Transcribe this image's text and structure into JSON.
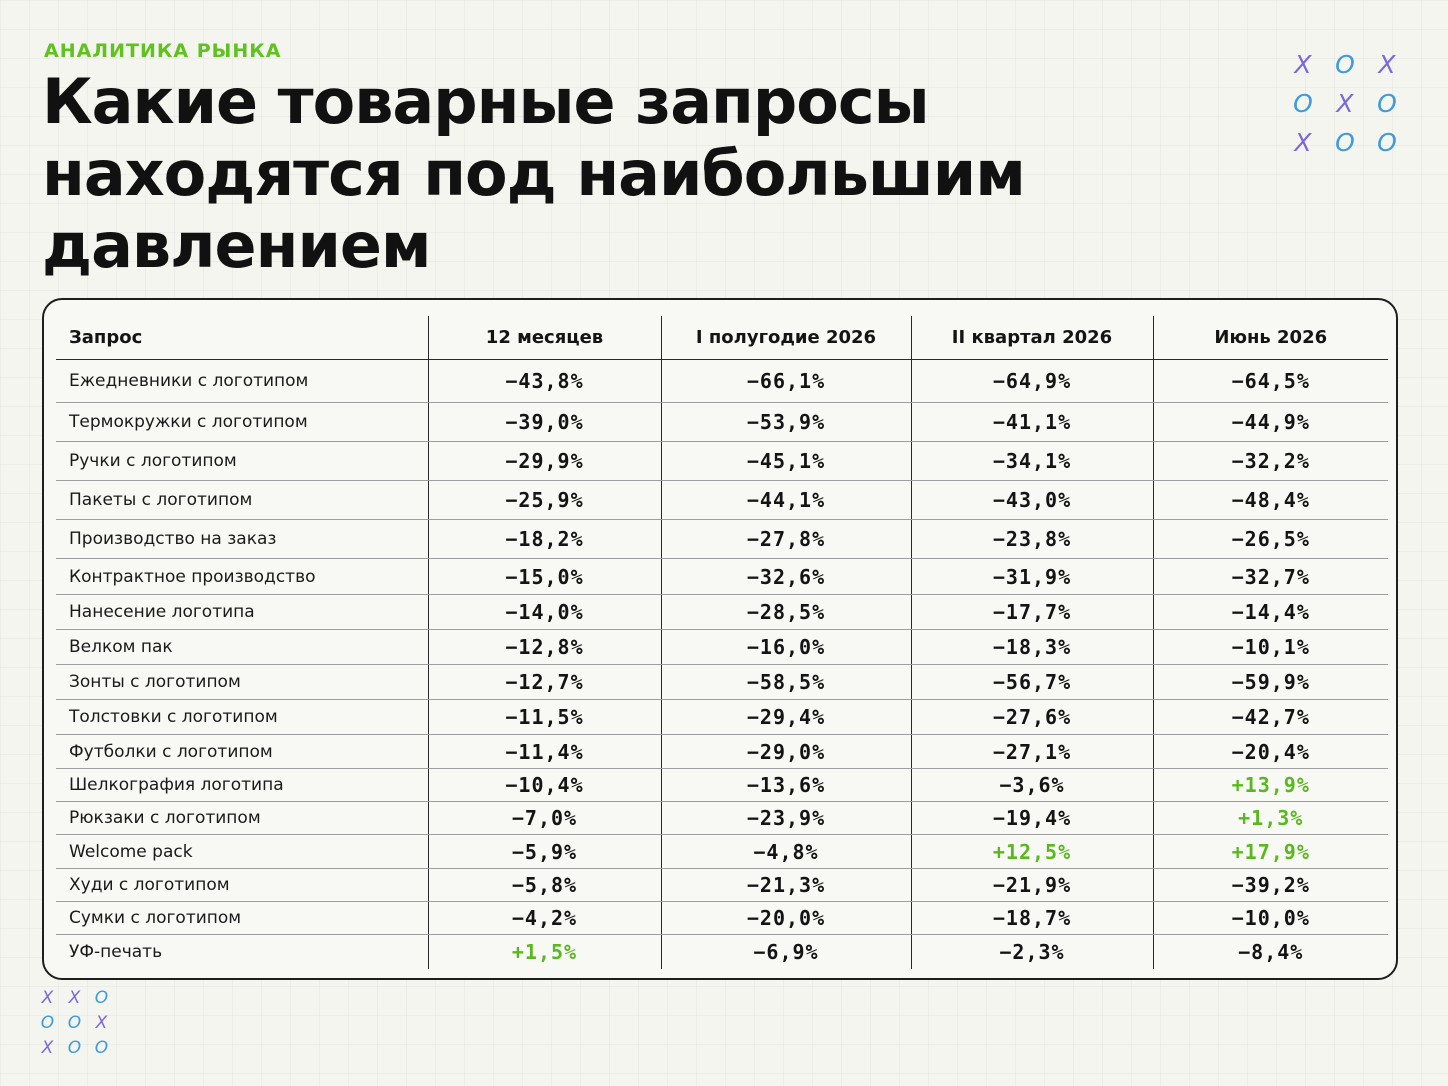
{
  "kicker": "АНАЛИТИКА РЫНКА",
  "headline": "Какие товарные запросы находятся под наибольшим давлением",
  "xo_top": [
    "X",
    "O",
    "X",
    "O",
    "X",
    "O",
    "X",
    "O",
    "O"
  ],
  "xo_bottom": [
    "X",
    "X",
    "O",
    "O",
    "O",
    "X",
    "X",
    "O",
    "O"
  ],
  "colors": {
    "positive": "#58b81e",
    "accent": "#5fc21e",
    "x_mark": "#7b68d8",
    "o_mark": "#3f9bd9"
  },
  "table": {
    "columns": [
      "Запрос",
      "12 месяцев",
      "I полугодие 2026",
      "II квартал 2026",
      "Июнь 2026"
    ],
    "rows": [
      {
        "name": "Ежедневники с логотипом",
        "values": [
          "−43,8%",
          "−66,1%",
          "−64,9%",
          "−64,5%"
        ]
      },
      {
        "name": "Термокружки с логотипом",
        "values": [
          "−39,0%",
          "−53,9%",
          "−41,1%",
          "−44,9%"
        ]
      },
      {
        "name": "Ручки с логотипом",
        "values": [
          "−29,9%",
          "−45,1%",
          "−34,1%",
          "−32,2%"
        ]
      },
      {
        "name": "Пакеты с логотипом",
        "values": [
          "−25,9%",
          "−44,1%",
          "−43,0%",
          "−48,4%"
        ]
      },
      {
        "name": "Производство на заказ",
        "values": [
          "−18,2%",
          "−27,8%",
          "−23,8%",
          "−26,5%"
        ]
      },
      {
        "name": "Контрактное производство",
        "values": [
          "−15,0%",
          "−32,6%",
          "−31,9%",
          "−32,7%"
        ]
      },
      {
        "name": "Нанесение логотипа",
        "values": [
          "−14,0%",
          "−28,5%",
          "−17,7%",
          "−14,4%"
        ]
      },
      {
        "name": "Велком пак",
        "values": [
          "−12,8%",
          "−16,0%",
          "−18,3%",
          "−10,1%"
        ]
      },
      {
        "name": "Зонты с логотипом",
        "values": [
          "−12,7%",
          "−58,5%",
          "−56,7%",
          "−59,9%"
        ]
      },
      {
        "name": "Толстовки с логотипом",
        "values": [
          "−11,5%",
          "−29,4%",
          "−27,6%",
          "−42,7%"
        ]
      },
      {
        "name": "Футболки с логотипом",
        "values": [
          "−11,4%",
          "−29,0%",
          "−27,1%",
          "−20,4%"
        ]
      },
      {
        "name": "Шелкография логотипа",
        "values": [
          "−10,4%",
          "−13,6%",
          "−3,6%",
          "+13,9%"
        ]
      },
      {
        "name": "Рюкзаки с логотипом",
        "values": [
          "−7,0%",
          "−23,9%",
          "−19,4%",
          "+1,3%"
        ]
      },
      {
        "name": "Welcome pack",
        "values": [
          "−5,9%",
          "−4,8%",
          "+12,5%",
          "+17,9%"
        ]
      },
      {
        "name": "Худи с логотипом",
        "values": [
          "−5,8%",
          "−21,3%",
          "−21,9%",
          "−39,2%"
        ]
      },
      {
        "name": "Сумки с логотипом",
        "values": [
          "−4,2%",
          "−20,0%",
          "−18,7%",
          "−10,0%"
        ]
      },
      {
        "name": "УФ-печать",
        "values": [
          "+1,5%",
          "−6,9%",
          "−2,3%",
          "−8,4%"
        ]
      }
    ]
  }
}
